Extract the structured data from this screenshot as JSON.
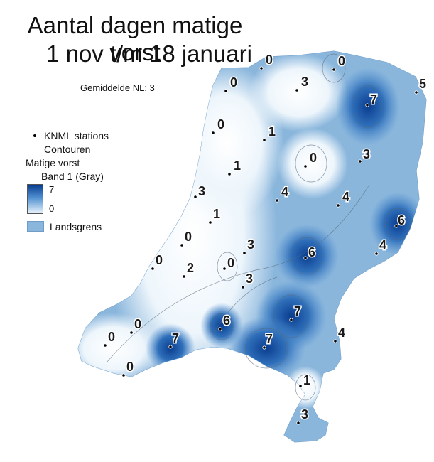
{
  "title_line1": "Aantal dagen matige vorst",
  "title_line2": "1 nov t/m 18 januari",
  "average_label": "Gemiddelde NL: 3",
  "legend": {
    "stations": "KNMI_stations",
    "contours": "Contouren",
    "layer": "Matige vorst",
    "band": "Band 1 (Gray)",
    "max": "7",
    "min": "0",
    "border": "Landsgrens"
  },
  "colors": {
    "low": "#e9f3fb",
    "mid": "#4f8fd0",
    "high": "#0a3d8f",
    "border_fill": "#8ab6dc"
  },
  "stations": [
    {
      "value": "0"
    },
    {
      "value": "0"
    },
    {
      "value": "0"
    },
    {
      "value": "3"
    },
    {
      "value": "7"
    },
    {
      "value": "5"
    },
    {
      "value": "1"
    },
    {
      "value": "0"
    },
    {
      "value": "3"
    },
    {
      "value": "1"
    },
    {
      "value": "0"
    },
    {
      "value": "3"
    },
    {
      "value": "4"
    },
    {
      "value": "4"
    },
    {
      "value": "6"
    },
    {
      "value": "1"
    },
    {
      "value": "0"
    },
    {
      "value": "3"
    },
    {
      "value": "6"
    },
    {
      "value": "4"
    },
    {
      "value": "0"
    },
    {
      "value": "2"
    },
    {
      "value": "0"
    },
    {
      "value": "3"
    },
    {
      "value": "7"
    },
    {
      "value": "6"
    },
    {
      "value": "7"
    },
    {
      "value": "7"
    },
    {
      "value": "4"
    },
    {
      "value": "0"
    },
    {
      "value": "0"
    },
    {
      "value": "0"
    },
    {
      "value": "1"
    },
    {
      "value": "3"
    }
  ]
}
